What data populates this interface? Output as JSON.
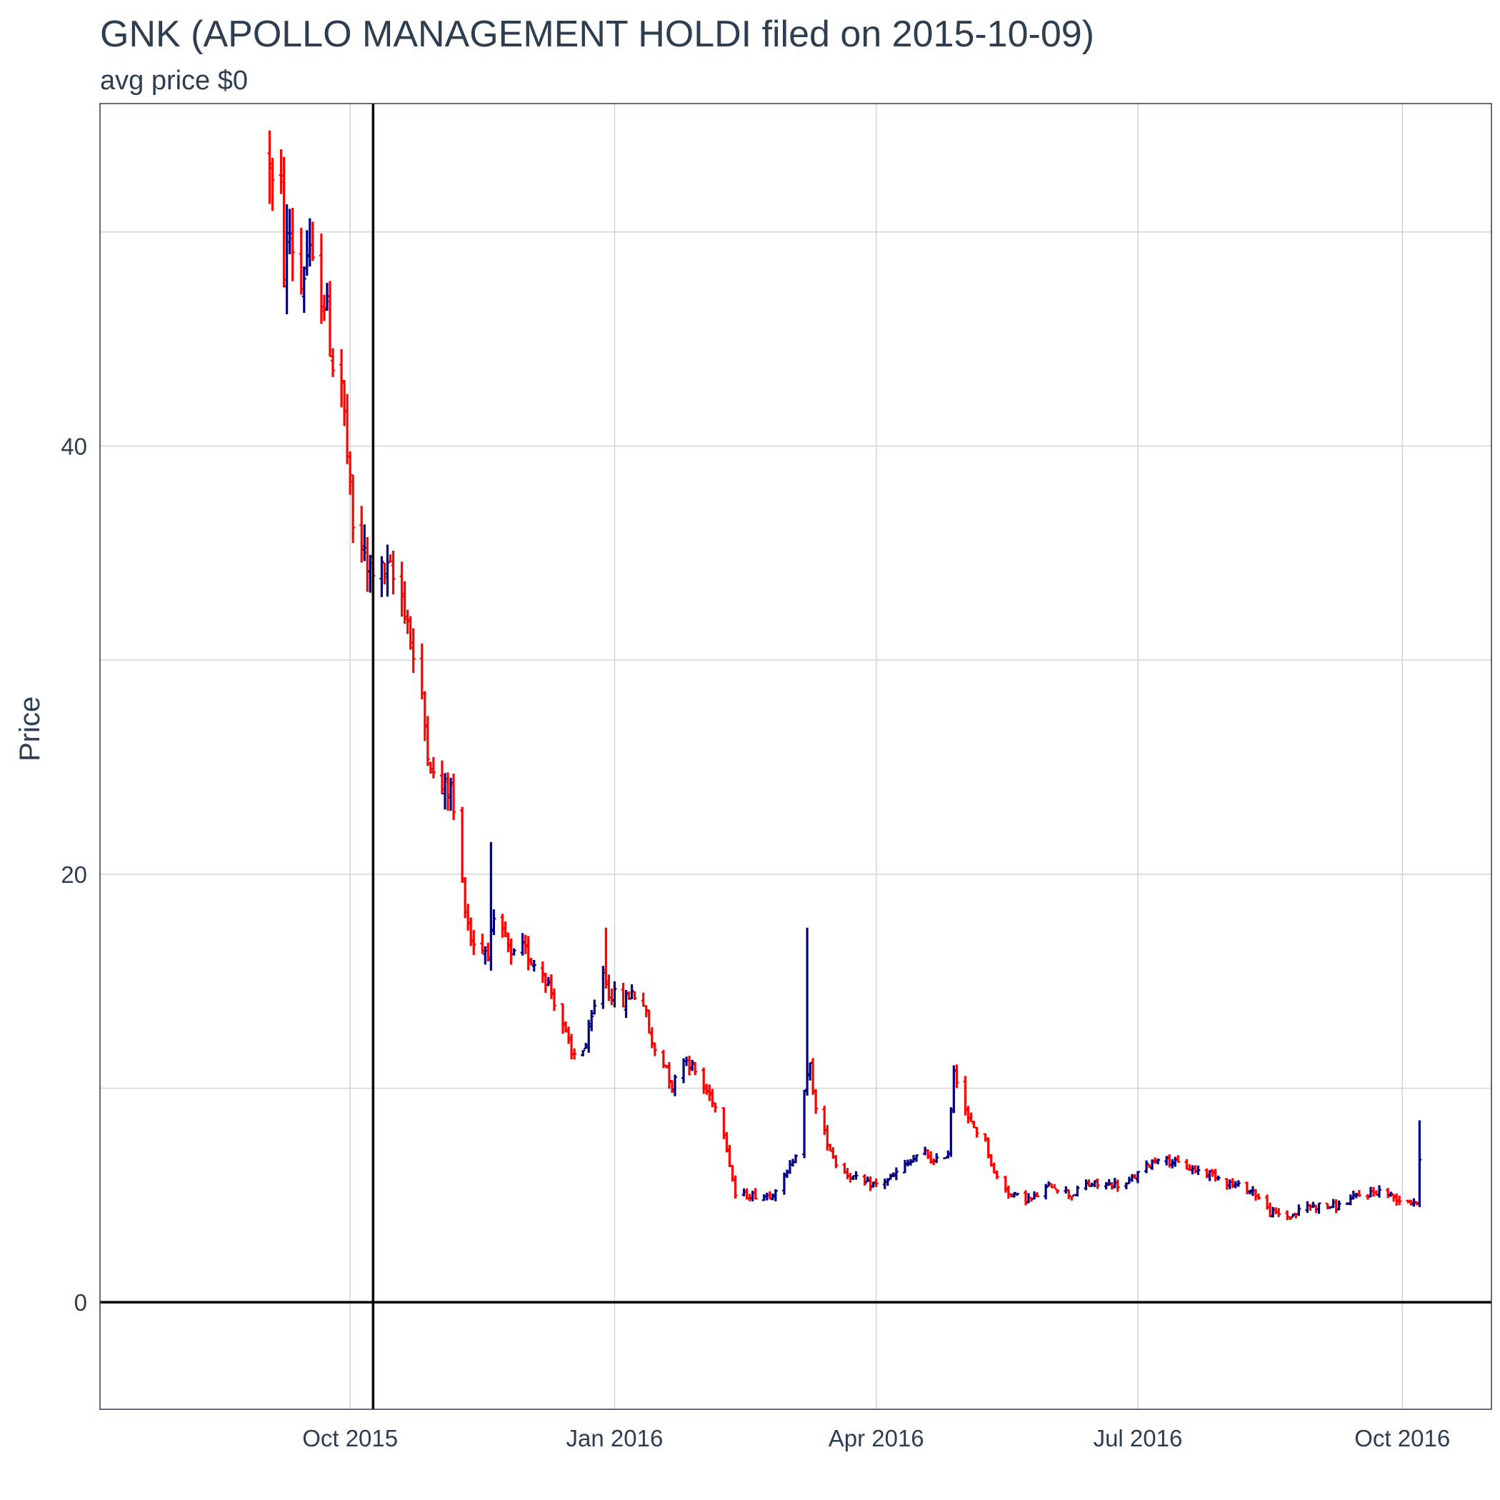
{
  "chart_data": {
    "type": "ohlc",
    "title": "GNK (APOLLO MANAGEMENT HOLDI filed on 2015-10-09)",
    "subtitle": "avg price $0",
    "xlabel": "",
    "ylabel": "Price",
    "x_axis": {
      "type": "date",
      "range": [
        "2015-07-06",
        "2016-11-01"
      ],
      "ticks": [
        "2015-10-01",
        "2016-01-01",
        "2016-04-01",
        "2016-07-01",
        "2016-10-01"
      ],
      "tick_labels": [
        "Oct 2015",
        "Jan 2016",
        "Apr 2016",
        "Jul 2016",
        "Oct 2016"
      ]
    },
    "y_axis": {
      "range": [
        -5,
        56
      ],
      "ticks": [
        0,
        20,
        40
      ],
      "tick_labels": [
        "0",
        "20",
        "40"
      ],
      "minor_gridlines": [
        10,
        30,
        50
      ]
    },
    "grid": true,
    "reference_lines": [
      {
        "type": "vertical",
        "x": "2015-10-09"
      },
      {
        "type": "horizontal",
        "y": 0
      }
    ],
    "colors": {
      "up": "#000080",
      "down": "#ff0000",
      "grid": "#d3d3d3",
      "reference": "#000000",
      "text": "#2c3e50"
    },
    "keypoints": [
      [
        "2015-09-03",
        53.5
      ],
      [
        "2015-09-04",
        52.0
      ],
      [
        "2015-09-07",
        51.5
      ],
      [
        "2015-09-08",
        48.5
      ],
      [
        "2015-09-10",
        50.0
      ],
      [
        "2015-09-14",
        47.5
      ],
      [
        "2015-09-16",
        49.0
      ],
      [
        "2015-09-18",
        48.0
      ],
      [
        "2015-09-22",
        47.0
      ],
      [
        "2015-09-24",
        45.0
      ],
      [
        "2015-09-25",
        44.0
      ],
      [
        "2015-09-28",
        43.0
      ],
      [
        "2015-09-30",
        39.5
      ],
      [
        "2015-10-01",
        37.5
      ],
      [
        "2015-10-02",
        36.0
      ],
      [
        "2015-10-05",
        35.5
      ],
      [
        "2015-10-07",
        34.0
      ],
      [
        "2015-10-08",
        34.5
      ],
      [
        "2015-10-12",
        34.0
      ],
      [
        "2015-10-15",
        34.0
      ],
      [
        "2015-10-19",
        33.0
      ],
      [
        "2015-10-21",
        32.0
      ],
      [
        "2015-10-23",
        30.0
      ],
      [
        "2015-10-26",
        28.0
      ],
      [
        "2015-10-28",
        26.0
      ],
      [
        "2015-10-30",
        24.5
      ],
      [
        "2015-11-02",
        24.0
      ],
      [
        "2015-11-05",
        24.0
      ],
      [
        "2015-11-09",
        19.5
      ],
      [
        "2015-11-12",
        17.0
      ],
      [
        "2015-11-16",
        16.5
      ],
      [
        "2015-11-18",
        16.5
      ],
      [
        "2015-11-20",
        17.5
      ],
      [
        "2015-11-24",
        17.0
      ],
      [
        "2015-11-26",
        16.0
      ],
      [
        "2015-11-30",
        16.5
      ],
      [
        "2015-12-03",
        16.0
      ],
      [
        "2015-12-07",
        15.5
      ],
      [
        "2015-12-10",
        14.5
      ],
      [
        "2015-12-14",
        13.0
      ],
      [
        "2015-12-17",
        11.5
      ],
      [
        "2015-12-22",
        12.0
      ],
      [
        "2015-12-28",
        15.5
      ],
      [
        "2015-12-30",
        14.5
      ],
      [
        "2016-01-04",
        14.0
      ],
      [
        "2016-01-07",
        14.5
      ],
      [
        "2016-01-11",
        14.0
      ],
      [
        "2016-01-14",
        12.0
      ],
      [
        "2016-01-19",
        11.0
      ],
      [
        "2016-01-21",
        10.0
      ],
      [
        "2016-01-25",
        11.5
      ],
      [
        "2016-01-28",
        11.0
      ],
      [
        "2016-02-01",
        10.0
      ],
      [
        "2016-02-04",
        9.5
      ],
      [
        "2016-02-08",
        8.0
      ],
      [
        "2016-02-10",
        6.5
      ],
      [
        "2016-02-12",
        5.0
      ],
      [
        "2016-02-15",
        5.0
      ],
      [
        "2016-02-19",
        5.0
      ],
      [
        "2016-02-24",
        5.0
      ],
      [
        "2016-03-01",
        6.0
      ],
      [
        "2016-03-04",
        7.0
      ],
      [
        "2016-03-07",
        10.0
      ],
      [
        "2016-03-09",
        11.0
      ],
      [
        "2016-03-11",
        9.0
      ],
      [
        "2016-03-15",
        7.5
      ],
      [
        "2016-03-18",
        6.5
      ],
      [
        "2016-03-22",
        6.0
      ],
      [
        "2016-03-28",
        5.5
      ],
      [
        "2016-04-01",
        5.5
      ],
      [
        "2016-04-06",
        5.8
      ],
      [
        "2016-04-12",
        6.5
      ],
      [
        "2016-04-18",
        7.0
      ],
      [
        "2016-04-21",
        6.5
      ],
      [
        "2016-04-26",
        7.0
      ],
      [
        "2016-04-28",
        11.0
      ],
      [
        "2016-05-03",
        8.5
      ],
      [
        "2016-05-09",
        7.5
      ],
      [
        "2016-05-12",
        6.0
      ],
      [
        "2016-05-18",
        5.0
      ],
      [
        "2016-05-25",
        4.8
      ],
      [
        "2016-06-01",
        5.5
      ],
      [
        "2016-06-08",
        5.0
      ],
      [
        "2016-06-13",
        5.5
      ],
      [
        "2016-06-20",
        5.5
      ],
      [
        "2016-06-27",
        5.5
      ],
      [
        "2016-07-01",
        6.0
      ],
      [
        "2016-07-08",
        6.8
      ],
      [
        "2016-07-14",
        6.5
      ],
      [
        "2016-07-20",
        6.2
      ],
      [
        "2016-07-27",
        6.0
      ],
      [
        "2016-08-03",
        5.5
      ],
      [
        "2016-08-10",
        5.2
      ],
      [
        "2016-08-16",
        4.2
      ],
      [
        "2016-08-23",
        4.0
      ],
      [
        "2016-08-29",
        4.5
      ],
      [
        "2016-09-02",
        4.5
      ],
      [
        "2016-09-09",
        4.5
      ],
      [
        "2016-09-16",
        5.0
      ],
      [
        "2016-09-23",
        5.2
      ],
      [
        "2016-09-30",
        4.8
      ],
      [
        "2016-10-06",
        4.7
      ],
      [
        "2016-10-07",
        6.5
      ]
    ],
    "spikes": [
      [
        "2015-11-19",
        21.5
      ],
      [
        "2015-12-29",
        17.5
      ],
      [
        "2016-03-08",
        17.5
      ],
      [
        "2016-04-30",
        12.0
      ],
      [
        "2016-10-07",
        8.5
      ]
    ]
  }
}
